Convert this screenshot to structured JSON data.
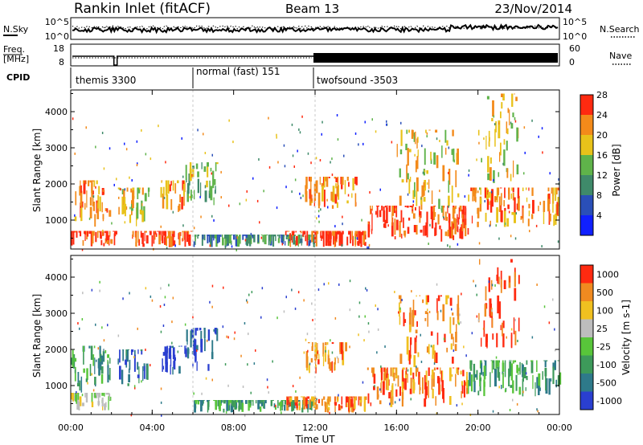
{
  "header": {
    "station": "Rankin Inlet (fitACF)",
    "beam": "Beam 13",
    "date": "23/Nov/2014"
  },
  "top_panels": {
    "nsky_label": "N.Sky",
    "nsky_ticks": [
      "10^5",
      "10^0"
    ],
    "nsearch_label": "N.Search",
    "nsearch_ticks": [
      "10^5",
      "10^0"
    ],
    "freq_label_1": "Freq.",
    "freq_label_2": "[MHz]",
    "freq_ticks": [
      "18",
      "8"
    ],
    "nave_label": "Nave",
    "nave_ticks": [
      "60",
      "0"
    ],
    "cpid_label": "CPID",
    "cpid_segments": [
      {
        "label": "themis 3300",
        "start": 0,
        "end": 6
      },
      {
        "label": "normal (fast) 151",
        "start": 6,
        "end": 12
      },
      {
        "label": "twofsound -3503",
        "start": 12,
        "end": 24
      }
    ]
  },
  "chart_data": [
    {
      "type": "heatmap",
      "name": "power",
      "xlabel": "",
      "ylabel": "Slant Range [km]",
      "xlim": [
        0,
        24
      ],
      "ylim": [
        200,
        4600
      ],
      "yticks": [
        1000,
        2000,
        3000,
        4000
      ],
      "colorbar_label": "Power [dB]",
      "colorbar_ticks": [
        "4",
        "8",
        "12",
        "16",
        "20",
        "24",
        "28"
      ],
      "colors": [
        "#1020ff",
        "#2a4fb8",
        "#3f8a6a",
        "#5fb34a",
        "#e8c21a",
        "#f38a1a",
        "#ff2a10"
      ],
      "patches": [
        {
          "x0": 0.0,
          "x1": 1.9,
          "y0": 800,
          "y1": 2100,
          "level": 5
        },
        {
          "x0": 0.0,
          "x1": 2.2,
          "y0": 250,
          "y1": 700,
          "level": 6
        },
        {
          "x0": 2.3,
          "x1": 3.8,
          "y0": 800,
          "y1": 1900,
          "level": 4
        },
        {
          "x0": 4.4,
          "x1": 5.6,
          "y0": 1200,
          "y1": 2100,
          "level": 5
        },
        {
          "x0": 5.6,
          "x1": 7.2,
          "y0": 1400,
          "y1": 2600,
          "level": 3
        },
        {
          "x0": 3.0,
          "x1": 6.0,
          "y0": 250,
          "y1": 700,
          "level": 6
        },
        {
          "x0": 6.0,
          "x1": 12.0,
          "y0": 250,
          "y1": 600,
          "level": 2
        },
        {
          "x0": 11.5,
          "x1": 14.0,
          "y0": 1300,
          "y1": 2200,
          "level": 5
        },
        {
          "x0": 10.5,
          "x1": 14.5,
          "y0": 250,
          "y1": 700,
          "level": 6
        },
        {
          "x0": 14.5,
          "x1": 19.5,
          "y0": 400,
          "y1": 1400,
          "level": 6
        },
        {
          "x0": 16.0,
          "x1": 19.0,
          "y0": 1200,
          "y1": 3500,
          "level": 4
        },
        {
          "x0": 19.5,
          "x1": 24.0,
          "y0": 800,
          "y1": 1900,
          "level": 5
        },
        {
          "x0": 20.0,
          "x1": 22.0,
          "y0": 2000,
          "y1": 4500,
          "level": 4
        }
      ]
    },
    {
      "type": "heatmap",
      "name": "velocity",
      "xlabel": "Time UT",
      "ylabel": "Slant Range [km]",
      "xlim": [
        0,
        24
      ],
      "ylim": [
        200,
        4600
      ],
      "yticks": [
        1000,
        2000,
        3000,
        4000
      ],
      "xtick_labels": [
        "00:00",
        "04:00",
        "08:00",
        "12:00",
        "16:00",
        "20:00",
        "00:00"
      ],
      "xticks": [
        0,
        4,
        8,
        12,
        16,
        20,
        24
      ],
      "colorbar_label": "Velocity [m s-1]",
      "colorbar_ticks": [
        "1000",
        "500",
        "100",
        "25",
        "-25",
        "-100",
        "-500",
        "-1000"
      ],
      "colors": [
        "#2a3fd0",
        "#2e7a8a",
        "#3d9a5a",
        "#58c53a",
        "#bdbdbd",
        "#f0c020",
        "#f08a20",
        "#ff2a10"
      ],
      "patches": [
        {
          "x0": 0.0,
          "x1": 1.9,
          "y0": 800,
          "y1": 2100,
          "level": 2
        },
        {
          "x0": 0.0,
          "x1": 2.0,
          "y0": 300,
          "y1": 800,
          "level": 4
        },
        {
          "x0": 2.3,
          "x1": 3.8,
          "y0": 900,
          "y1": 2000,
          "level": 1
        },
        {
          "x0": 4.4,
          "x1": 5.6,
          "y0": 1300,
          "y1": 2100,
          "level": 0
        },
        {
          "x0": 5.6,
          "x1": 7.2,
          "y0": 1400,
          "y1": 2600,
          "level": 0
        },
        {
          "x0": 6.0,
          "x1": 12.0,
          "y0": 250,
          "y1": 600,
          "level": 2
        },
        {
          "x0": 11.5,
          "x1": 13.5,
          "y0": 1300,
          "y1": 2200,
          "level": 6
        },
        {
          "x0": 10.5,
          "x1": 14.5,
          "y0": 250,
          "y1": 700,
          "level": 6
        },
        {
          "x0": 14.5,
          "x1": 19.5,
          "y0": 400,
          "y1": 1500,
          "level": 6
        },
        {
          "x0": 16.0,
          "x1": 19.0,
          "y0": 1500,
          "y1": 3500,
          "level": 6
        },
        {
          "x0": 19.5,
          "x1": 24.0,
          "y0": 700,
          "y1": 1700,
          "level": 2
        },
        {
          "x0": 20.0,
          "x1": 22.0,
          "y0": 2000,
          "y1": 4500,
          "level": 7
        }
      ]
    }
  ]
}
